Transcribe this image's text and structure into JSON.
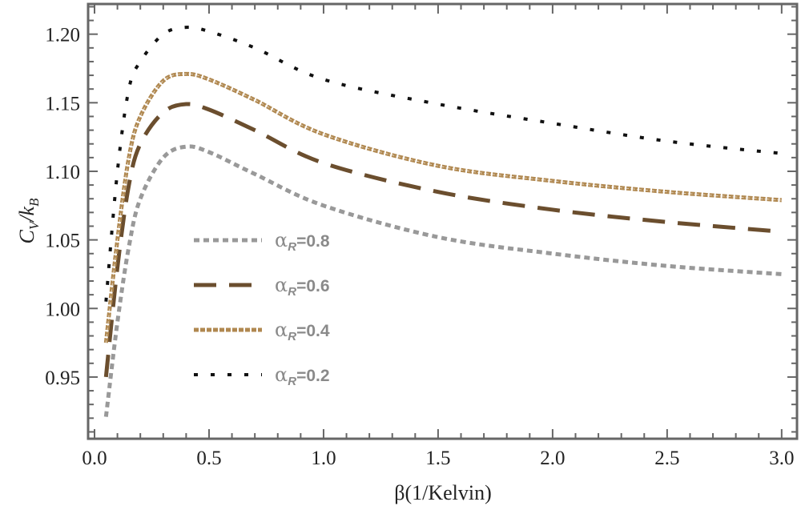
{
  "chart_data": {
    "type": "line",
    "title": "",
    "xlabel": "β(1/Kelvin)",
    "ylabel": "C_V/k_B",
    "xlim": [
      -0.028,
      3.067
    ],
    "ylim": [
      0.905,
      1.222
    ],
    "grid": false,
    "legend_placement": "center-left inside",
    "x_ticks": [
      "0.0",
      "0.5",
      "1.0",
      "1.5",
      "2.0",
      "2.5",
      "3.0"
    ],
    "y_ticks": [
      "0.95",
      "1.00",
      "1.05",
      "1.10",
      "1.15",
      "1.20"
    ],
    "x": [
      0.05,
      0.1,
      0.15,
      0.2,
      0.3,
      0.4,
      0.5,
      0.7,
      1.0,
      1.5,
      2.0,
      2.5,
      3.0
    ],
    "series": [
      {
        "name": "α_R=0.8",
        "label_main": "α",
        "label_sub": "R",
        "label_value": "=0.8",
        "color": "#999999",
        "style": "dotted",
        "values": [
          0.921,
          0.99,
          1.045,
          1.08,
          1.11,
          1.118,
          1.114,
          1.098,
          1.075,
          1.052,
          1.04,
          1.031,
          1.025
        ]
      },
      {
        "name": "α_R=0.6",
        "label_main": "α",
        "label_sub": "R",
        "label_value": "=0.6",
        "color": "#6b4e2e",
        "style": "long-dashed",
        "values": [
          0.95,
          1.03,
          1.09,
          1.12,
          1.143,
          1.149,
          1.145,
          1.13,
          1.106,
          1.085,
          1.072,
          1.063,
          1.056
        ]
      },
      {
        "name": "α_R=0.4",
        "label_main": "α",
        "label_sub": "R",
        "label_value": "=0.4",
        "color": "#b08850",
        "style": "fine-dashed",
        "values": [
          0.975,
          1.05,
          1.11,
          1.14,
          1.166,
          1.171,
          1.167,
          1.152,
          1.127,
          1.104,
          1.093,
          1.085,
          1.079
        ]
      },
      {
        "name": "α_R=0.2",
        "label_main": "α",
        "label_sub": "R",
        "label_value": "=0.2",
        "color": "#111111",
        "style": "sparse-dashed",
        "values": [
          1.005,
          1.1,
          1.16,
          1.18,
          1.2,
          1.205,
          1.202,
          1.19,
          1.167,
          1.149,
          1.135,
          1.122,
          1.113
        ]
      }
    ]
  }
}
